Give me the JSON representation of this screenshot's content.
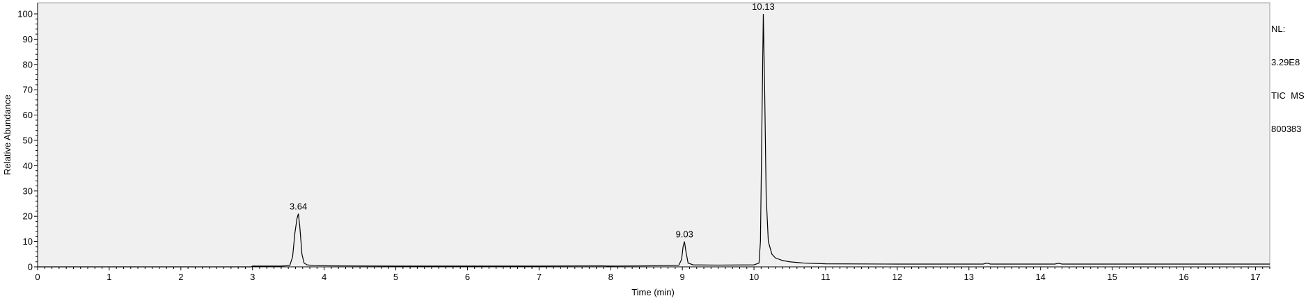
{
  "info": {
    "nl_label": "NL:",
    "nl_value": "3.29E8",
    "trace": "TIC  MS",
    "sample": "800383"
  },
  "chart_data": {
    "type": "line",
    "title": "",
    "xlabel": "Time (min)",
    "ylabel": "Relative Abundance",
    "xlim": [
      0,
      17.2
    ],
    "ylim": [
      0,
      100
    ],
    "xticks": [
      0,
      1,
      2,
      3,
      4,
      5,
      6,
      7,
      8,
      9,
      10,
      11,
      12,
      13,
      14,
      15,
      16,
      17
    ],
    "yticks": [
      0,
      10,
      20,
      30,
      40,
      50,
      60,
      70,
      80,
      90,
      100
    ],
    "grid": false,
    "plot_background": "#f0f0f0",
    "line_color": "#000000",
    "peaks": [
      {
        "label": "3.64",
        "x": 3.64,
        "y": 21
      },
      {
        "label": "9.03",
        "x": 9.03,
        "y": 10
      },
      {
        "label": "10.13",
        "x": 10.13,
        "y": 100
      }
    ],
    "series": [
      {
        "x": [
          0,
          2.98,
          3.0,
          3.4,
          3.52,
          3.56,
          3.59,
          3.62,
          3.64,
          3.66,
          3.69,
          3.72,
          3.76,
          3.85,
          4.1,
          5.0,
          6.0,
          7.0,
          7.9,
          7.95,
          8.5,
          8.95,
          8.99,
          9.01,
          9.03,
          9.05,
          9.08,
          9.15,
          9.5,
          10.0,
          10.07,
          10.09,
          10.11,
          10.13,
          10.15,
          10.17,
          10.2,
          10.25,
          10.3,
          10.4,
          10.5,
          10.7,
          11.0,
          12.0,
          13.2,
          13.25,
          13.3,
          14.2,
          14.25,
          14.3,
          15.0,
          16.0,
          17.2
        ],
        "y": [
          0,
          0,
          0.3,
          0.3,
          0.5,
          4,
          13,
          19,
          21,
          16,
          5,
          1.5,
          0.8,
          0.5,
          0.4,
          0.3,
          0.3,
          0.3,
          0.4,
          0.3,
          0.4,
          0.6,
          3,
          8,
          10,
          6,
          1.5,
          0.8,
          0.7,
          0.8,
          1.5,
          10,
          55,
          100,
          68,
          28,
          10,
          5,
          3.5,
          2.5,
          2,
          1.5,
          1.2,
          1.1,
          1.1,
          1.5,
          1.1,
          1.1,
          1.4,
          1.1,
          1.1,
          1.1,
          1.1
        ]
      }
    ]
  }
}
